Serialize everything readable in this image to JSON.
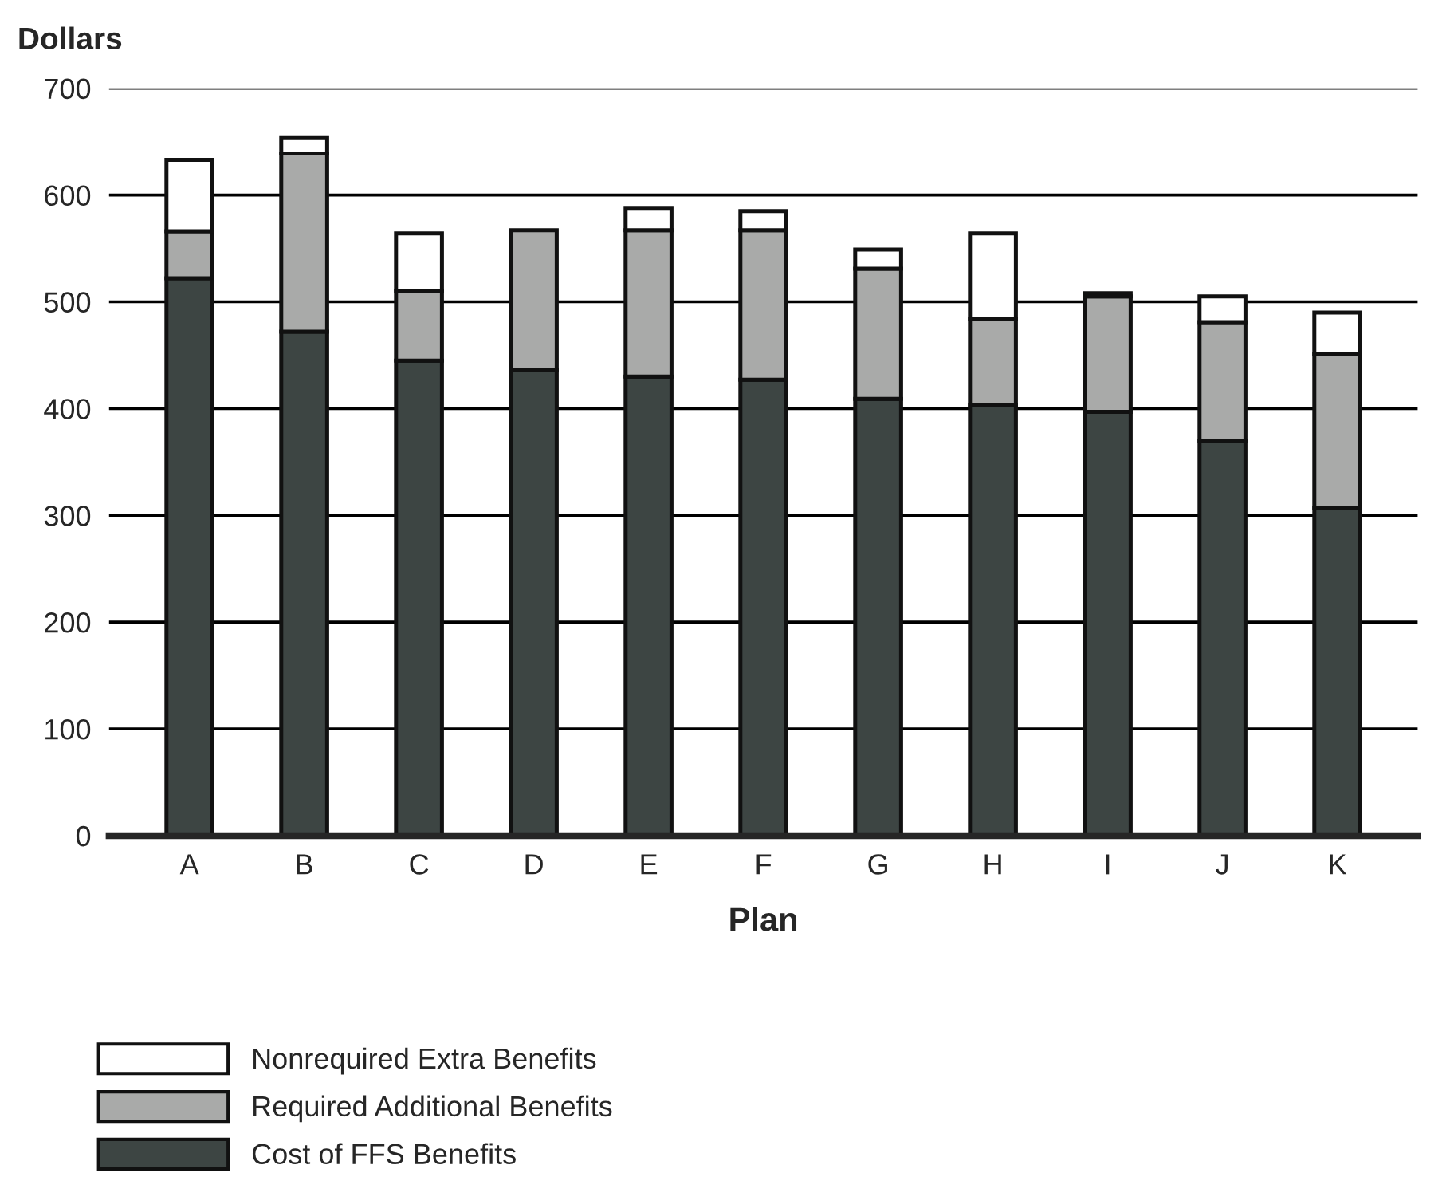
{
  "chart_data": {
    "type": "bar",
    "stacked": true,
    "xlabel": "Plan",
    "ylabel": "Dollars",
    "categories": [
      "A",
      "B",
      "C",
      "D",
      "E",
      "F",
      "G",
      "H",
      "I",
      "J",
      "K"
    ],
    "series": [
      {
        "name": "Cost of FFS Benefits",
        "color": "#3d4543",
        "values": [
          522,
          472,
          445,
          436,
          430,
          427,
          409,
          403,
          397,
          370,
          307
        ]
      },
      {
        "name": "Required Additional Benefits",
        "color": "#a9aaa9",
        "values": [
          44,
          167,
          65,
          131,
          137,
          140,
          122,
          81,
          108,
          111,
          144
        ]
      },
      {
        "name": "Nonrequired Extra Benefits",
        "color": "#ffffff",
        "values": [
          67,
          15,
          54,
          null,
          21,
          18,
          18,
          80,
          3,
          24,
          39
        ]
      }
    ],
    "ylim": [
      0,
      700
    ],
    "yticks": [
      0,
      100,
      200,
      300,
      400,
      500,
      600,
      700
    ],
    "grid": "y",
    "legend": "bottom"
  }
}
